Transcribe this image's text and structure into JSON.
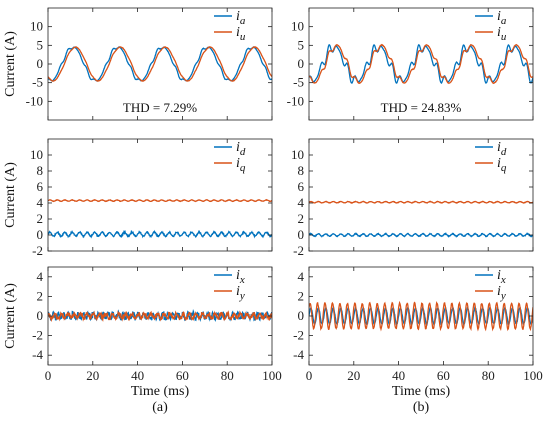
{
  "figure": {
    "ylabel": "Current (A)",
    "xlabel": "Time (ms)",
    "xticks": [
      "0",
      "20",
      "40",
      "60",
      "80",
      "100"
    ],
    "col_labels": [
      "(a)",
      "(b)"
    ]
  },
  "colors": {
    "blue": "#0072BD",
    "orange": "#D95319"
  },
  "chart_data": [
    {
      "type": "line",
      "id": "a1",
      "col": 0,
      "row": 0,
      "xlim": [
        0,
        100
      ],
      "ylim": [
        -15,
        15
      ],
      "yticks": [
        "-10",
        "-5",
        "0",
        "5",
        "10"
      ],
      "legend": {
        "position": "top-right",
        "entries": [
          {
            "base": "i",
            "sub": "a",
            "color": "#0072BD"
          },
          {
            "base": "i",
            "sub": "u",
            "color": "#D95319"
          }
        ]
      },
      "annotation": "THD = 7.29%",
      "series": [
        {
          "color": "#0072BD",
          "model": {
            "type": "sine",
            "amp": 4.5,
            "freq_hz": 50,
            "phase_deg": -110,
            "h5": 0.3,
            "h7": 0.2
          }
        },
        {
          "color": "#D95319",
          "model": {
            "type": "sine",
            "amp": 4.5,
            "freq_hz": 50,
            "phase_deg": -130,
            "h5": 0.1,
            "h7": 0.05
          }
        }
      ]
    },
    {
      "type": "line",
      "id": "b1",
      "col": 1,
      "row": 0,
      "xlim": [
        0,
        100
      ],
      "ylim": [
        -15,
        15
      ],
      "yticks": [
        "-10",
        "-5",
        "0",
        "5",
        "10"
      ],
      "legend": {
        "position": "top-right",
        "entries": [
          {
            "base": "i",
            "sub": "a",
            "color": "#0072BD"
          },
          {
            "base": "i",
            "sub": "u",
            "color": "#D95319"
          }
        ]
      },
      "annotation": "THD = 24.83%",
      "series": [
        {
          "color": "#0072BD",
          "model": {
            "type": "sine",
            "amp": 4.5,
            "freq_hz": 50,
            "phase_deg": -110,
            "h5": 1.0,
            "h7": 0.6
          }
        },
        {
          "color": "#D95319",
          "model": {
            "type": "sine",
            "amp": 4.8,
            "freq_hz": 50,
            "phase_deg": -130,
            "h5": 0.6,
            "h7": 0.3
          }
        }
      ]
    },
    {
      "type": "line",
      "id": "a2",
      "col": 0,
      "row": 1,
      "xlim": [
        0,
        100
      ],
      "ylim": [
        -2,
        12
      ],
      "yticks": [
        "-2",
        "0",
        "2",
        "4",
        "6",
        "8",
        "10"
      ],
      "legend": {
        "position": "top-right",
        "entries": [
          {
            "base": "i",
            "sub": "d",
            "color": "#0072BD"
          },
          {
            "base": "i",
            "sub": "q",
            "color": "#D95319"
          }
        ]
      },
      "series": [
        {
          "color": "#0072BD",
          "model": {
            "type": "dc",
            "level": 0.1,
            "ripple": 0.25,
            "ripple_freq_hz": 300
          }
        },
        {
          "color": "#D95319",
          "model": {
            "type": "dc",
            "level": 4.3,
            "ripple": 0.08,
            "ripple_freq_hz": 300
          }
        }
      ]
    },
    {
      "type": "line",
      "id": "b2",
      "col": 1,
      "row": 1,
      "xlim": [
        0,
        100
      ],
      "ylim": [
        -2,
        12
      ],
      "yticks": [
        "-2",
        "0",
        "2",
        "4",
        "6",
        "8",
        "10"
      ],
      "legend": {
        "position": "top-right",
        "entries": [
          {
            "base": "i",
            "sub": "d",
            "color": "#0072BD"
          },
          {
            "base": "i",
            "sub": "q",
            "color": "#D95319"
          }
        ]
      },
      "series": [
        {
          "color": "#0072BD",
          "model": {
            "type": "dc",
            "level": 0.0,
            "ripple": 0.15,
            "ripple_freq_hz": 300
          }
        },
        {
          "color": "#D95319",
          "model": {
            "type": "dc",
            "level": 4.1,
            "ripple": 0.08,
            "ripple_freq_hz": 300
          }
        }
      ]
    },
    {
      "type": "line",
      "id": "a3",
      "col": 0,
      "row": 2,
      "xlim": [
        0,
        100
      ],
      "ylim": [
        -5,
        5
      ],
      "yticks": [
        "-4",
        "-2",
        "0",
        "2",
        "4"
      ],
      "legend": {
        "position": "top-right",
        "entries": [
          {
            "base": "i",
            "sub": "x",
            "color": "#0072BD"
          },
          {
            "base": "i",
            "sub": "y",
            "color": "#D95319"
          }
        ]
      },
      "series": [
        {
          "color": "#0072BD",
          "model": {
            "type": "noise",
            "amp": 0.4,
            "freq_hz": 450
          }
        },
        {
          "color": "#D95319",
          "model": {
            "type": "noise",
            "amp": 0.35,
            "freq_hz": 350
          }
        }
      ]
    },
    {
      "type": "line",
      "id": "b3",
      "col": 1,
      "row": 2,
      "xlim": [
        0,
        100
      ],
      "ylim": [
        -5,
        5
      ],
      "yticks": [
        "-4",
        "-2",
        "0",
        "2",
        "4"
      ],
      "legend": {
        "position": "top-right",
        "entries": [
          {
            "base": "i",
            "sub": "x",
            "color": "#0072BD"
          },
          {
            "base": "i",
            "sub": "y",
            "color": "#D95319"
          }
        ]
      },
      "series": [
        {
          "color": "#0072BD",
          "model": {
            "type": "ripple",
            "amp": 0.8,
            "freq_hz": 300,
            "phase_deg": 0
          }
        },
        {
          "color": "#D95319",
          "model": {
            "type": "ripple",
            "amp": 1.3,
            "freq_hz": 300,
            "phase_deg": 40
          }
        }
      ]
    }
  ]
}
